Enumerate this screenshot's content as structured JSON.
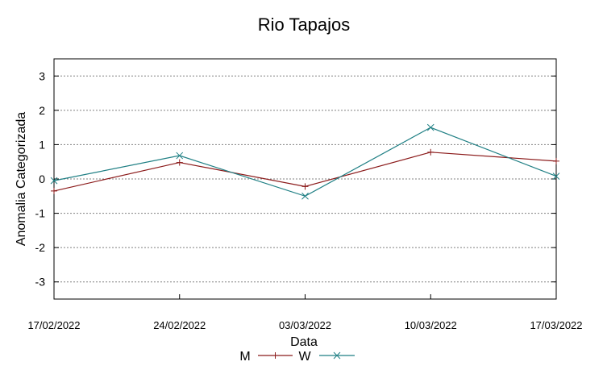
{
  "chart_data": {
    "type": "line",
    "title": "Rio Tapajos",
    "xlabel": "Data",
    "ylabel": "Anomalia Categorizada",
    "x": [
      "17/02/2022",
      "24/02/2022",
      "03/03/2022",
      "10/03/2022",
      "17/03/2022"
    ],
    "ylim": [
      -3.5,
      3.5
    ],
    "yticks": [
      "3",
      "2",
      "1",
      "0",
      "-1",
      "-2",
      "-3"
    ],
    "grid": true,
    "legend_position": "bottom-center",
    "series": [
      {
        "name": "M",
        "color": "#8b1a1a",
        "marker": "plus",
        "values": [
          -0.35,
          0.48,
          -0.22,
          0.78,
          0.52
        ]
      },
      {
        "name": "W",
        "color": "#1f7f84",
        "marker": "cross",
        "values": [
          -0.05,
          0.68,
          -0.5,
          1.5,
          0.08
        ]
      }
    ]
  }
}
